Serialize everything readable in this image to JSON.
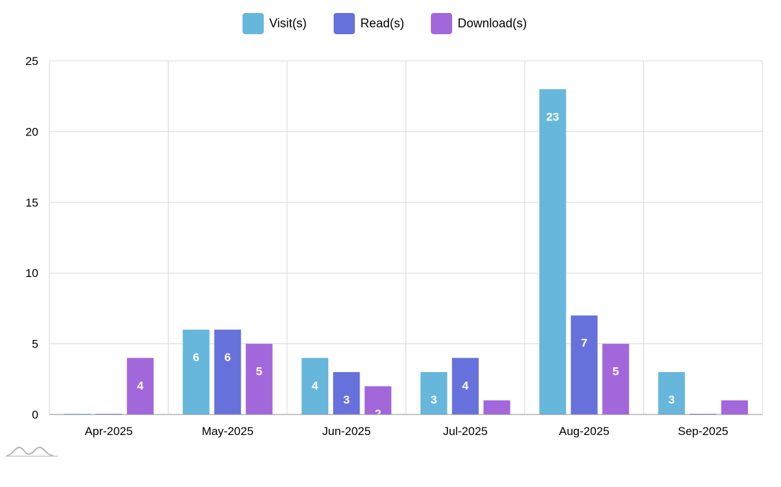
{
  "chart_data": {
    "type": "bar",
    "categories": [
      "Apr-2025",
      "May-2025",
      "Jun-2025",
      "Jul-2025",
      "Aug-2025",
      "Sep-2025"
    ],
    "series": [
      {
        "name": "Visit(s)",
        "color": "#67b7dc",
        "values": [
          0,
          6,
          4,
          3,
          23,
          3
        ]
      },
      {
        "name": "Read(s)",
        "color": "#6771dc",
        "values": [
          0,
          6,
          3,
          4,
          7,
          0
        ]
      },
      {
        "name": "Download(s)",
        "color": "#a367dc",
        "values": [
          4,
          5,
          2,
          1,
          5,
          1
        ]
      }
    ],
    "ylim": [
      0,
      25
    ],
    "yticks": [
      0,
      5,
      10,
      15,
      20,
      25
    ],
    "grid": true,
    "legend_position": "top-center",
    "data_labels": true,
    "title": "",
    "xlabel": "",
    "ylabel": ""
  },
  "watermark": {
    "icon": "amcharts-logo-icon"
  }
}
